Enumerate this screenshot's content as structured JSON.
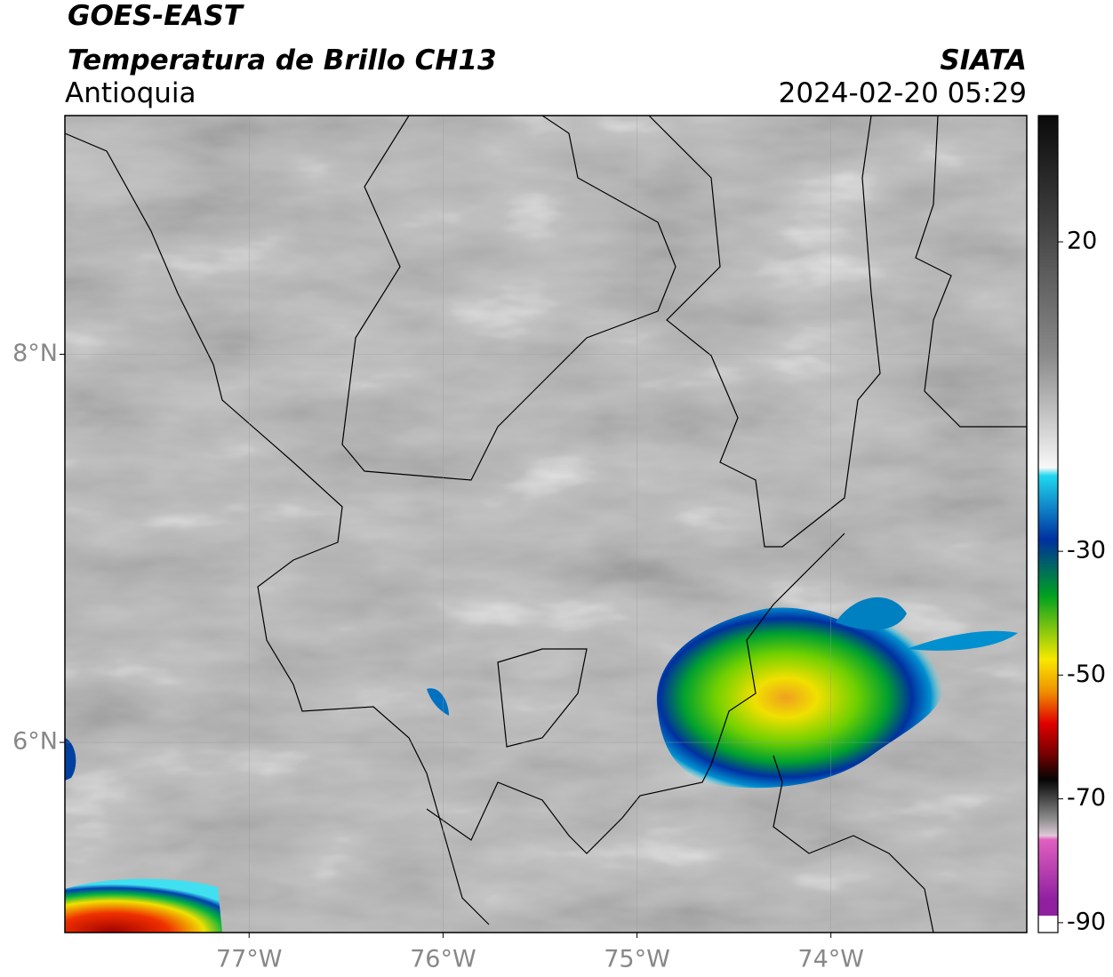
{
  "header": {
    "title": "GOES-EAST",
    "subtitle": "Temperatura de Brillo CH13",
    "region": "Antioquia",
    "source": "SIATA",
    "timestamp": "2024-02-20 05:29"
  },
  "map": {
    "xlim": [
      -77.95,
      -72.99
    ],
    "ylim": [
      5.02,
      9.23
    ],
    "xticks": [
      {
        "value": -77,
        "label": "77°W"
      },
      {
        "value": -76,
        "label": "76°W"
      },
      {
        "value": -75,
        "label": "75°W"
      },
      {
        "value": -74,
        "label": "74°W"
      }
    ],
    "yticks": [
      {
        "value": 6,
        "label": "6°N"
      },
      {
        "value": 8,
        "label": "8°N"
      }
    ],
    "grid": true
  },
  "colorbar": {
    "lim": [
      -91.6,
      40.4
    ],
    "ticks": [
      20,
      -30,
      -50,
      -70,
      -90
    ]
  }
}
